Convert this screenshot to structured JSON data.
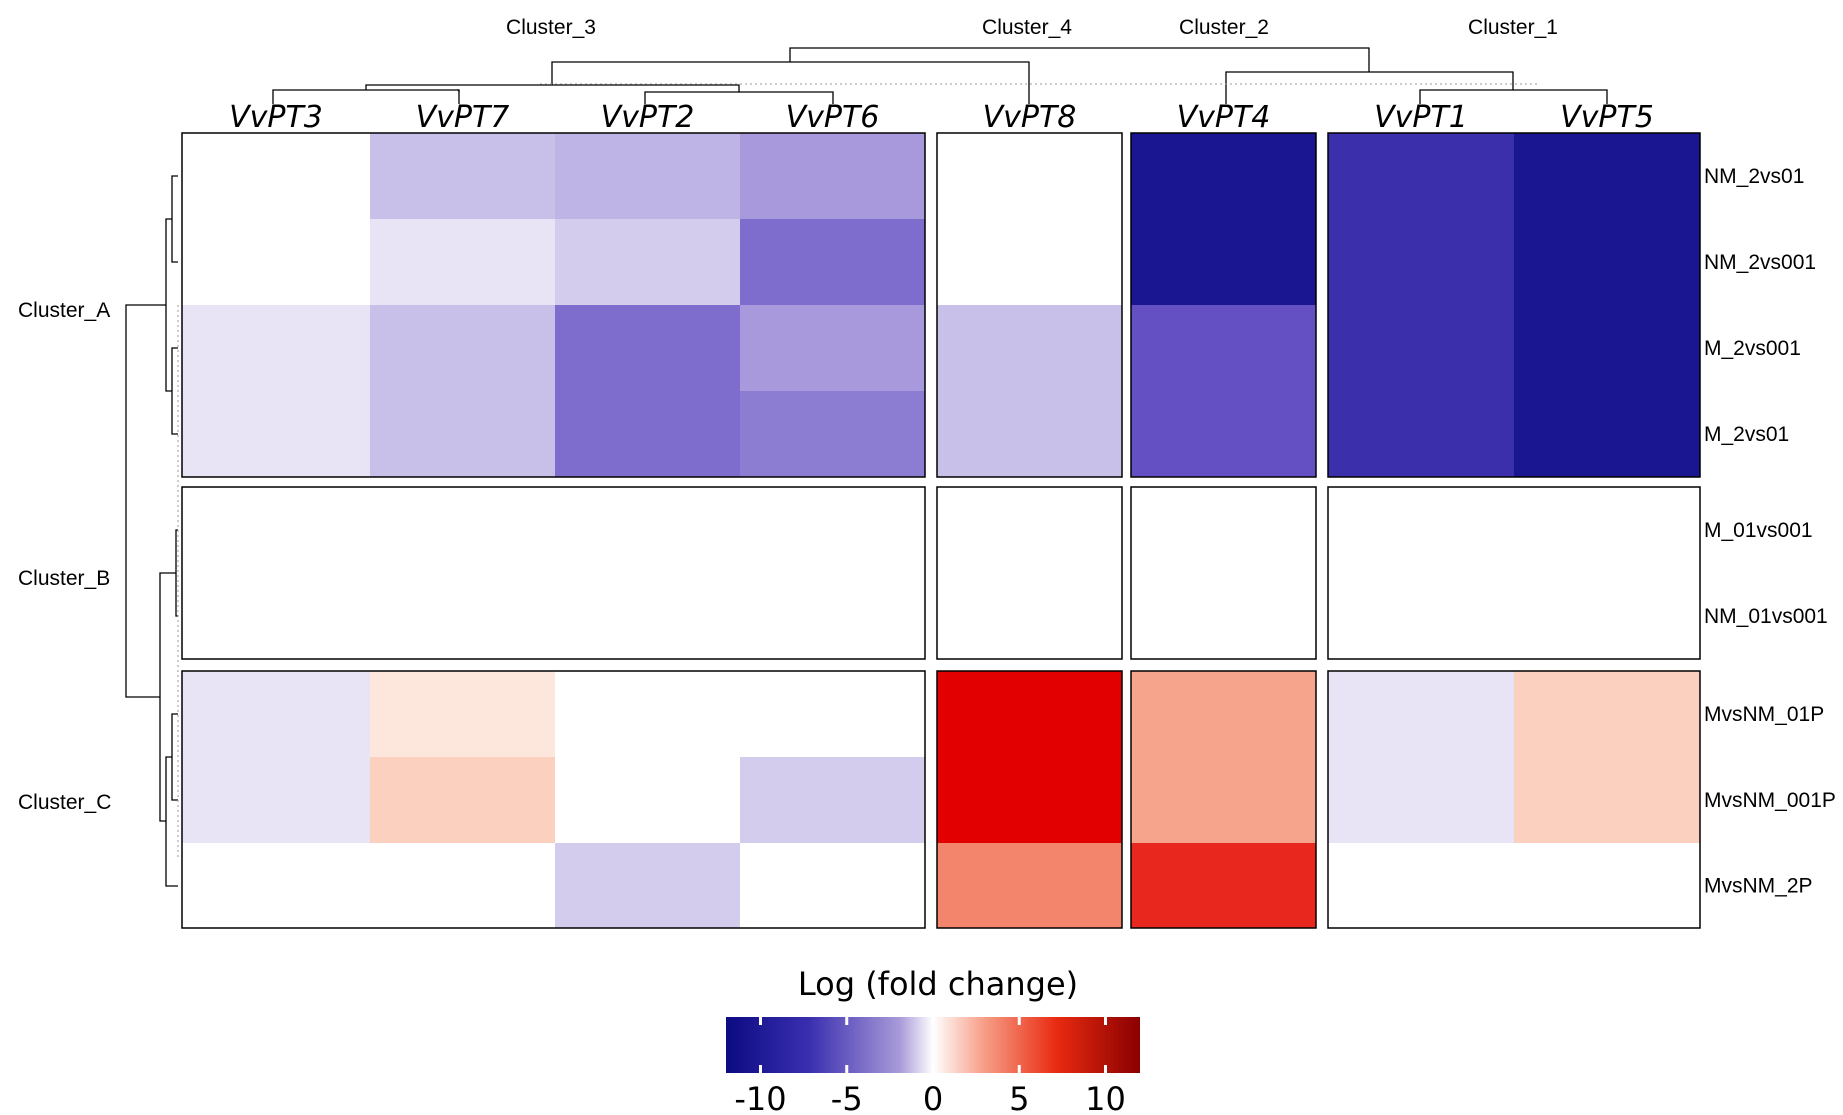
{
  "chart_data": {
    "type": "heatmap",
    "columns": [
      "VvPT3",
      "VvPT7",
      "VvPT2",
      "VvPT6",
      "VvPT8",
      "VvPT4",
      "VvPT1",
      "VvPT5"
    ],
    "rows": [
      "NM_2vs01",
      "NM_2vs001",
      "M_2vs001",
      "M_2vs01",
      "M_01vs001",
      "NM_01vs001",
      "MvsNM_01P",
      "MvsNM_001P",
      "MvsNM_2P"
    ],
    "values": [
      [
        0,
        -3,
        -3.5,
        -4.5,
        0,
        -11,
        -9,
        -11
      ],
      [
        0,
        -1.5,
        -2.5,
        -6,
        0,
        -11,
        -9,
        -11
      ],
      [
        -1.5,
        -3,
        -6,
        -4.5,
        -3,
        -7,
        -9,
        -11
      ],
      [
        -1.5,
        -3,
        -6,
        -5.5,
        -3,
        -7,
        -9,
        -11
      ],
      [
        0,
        0,
        0,
        0,
        0,
        0,
        0,
        0
      ],
      [
        0,
        0,
        0,
        0,
        0,
        0,
        0,
        0
      ],
      [
        -1.5,
        1.5,
        0,
        0,
        8.5,
        4,
        -1.5,
        2.5
      ],
      [
        -1.5,
        2.5,
        0,
        -2.5,
        8.5,
        4,
        -1.5,
        2.5
      ],
      [
        0,
        0,
        -2.5,
        0,
        5,
        7.5,
        0,
        0
      ]
    ],
    "column_clusters": [
      {
        "name": "Cluster_3",
        "columns": [
          "VvPT3",
          "VvPT7",
          "VvPT2",
          "VvPT6"
        ]
      },
      {
        "name": "Cluster_4",
        "columns": [
          "VvPT8"
        ]
      },
      {
        "name": "Cluster_2",
        "columns": [
          "VvPT4"
        ]
      },
      {
        "name": "Cluster_1",
        "columns": [
          "VvPT1",
          "VvPT5"
        ]
      }
    ],
    "row_clusters": [
      {
        "name": "Cluster_A",
        "rows": [
          "NM_2vs01",
          "NM_2vs001",
          "M_2vs001",
          "M_2vs01"
        ]
      },
      {
        "name": "Cluster_B",
        "rows": [
          "M_01vs001",
          "NM_01vs001"
        ]
      },
      {
        "name": "Cluster_C",
        "rows": [
          "MvsNM_01P",
          "MvsNM_001P",
          "MvsNM_2P"
        ]
      }
    ],
    "legend": {
      "title": "Log (fold change)",
      "ticks": [
        "-10",
        "-5",
        "0",
        "5",
        "10"
      ],
      "range": [
        -12,
        12
      ],
      "colors": {
        "low": "#0b0b82",
        "mid": "#ffffff",
        "high": "#8a0000"
      }
    }
  }
}
